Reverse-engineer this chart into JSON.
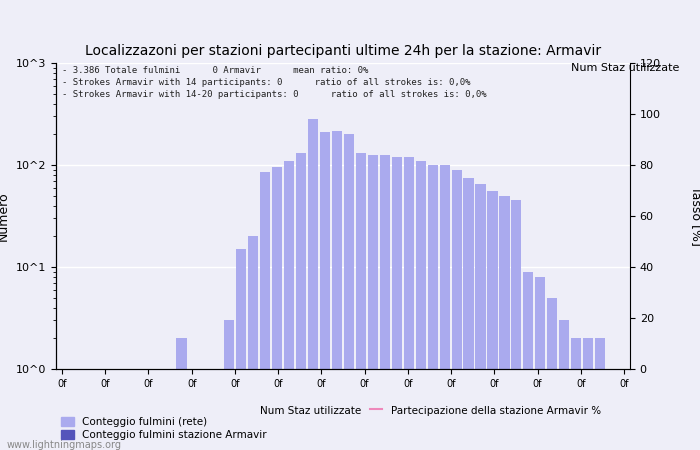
{
  "title": "Localizzazoni per stazioni partecipanti ultime 24h per la stazione: Armavir",
  "ylabel_left": "Numero",
  "ylabel_right": "Tasso [%]",
  "info_lines": [
    "- 3.386 Totale fulmini      0 Armavir      mean ratio: 0%",
    "- Strokes Armavir with 14 participants: 0      ratio of all strokes is: 0,0%",
    "- Strokes Armavir with 14-20 participants: 0      ratio of all strokes is: 0,0%"
  ],
  "bar_values": [
    1,
    1,
    1,
    1,
    1,
    1,
    1,
    1,
    1,
    1,
    2,
    1,
    1,
    1,
    3,
    15,
    20,
    85,
    95,
    110,
    130,
    280,
    210,
    215,
    200,
    130,
    125,
    125,
    120,
    120,
    110,
    100,
    100,
    90,
    75,
    65,
    55,
    50,
    45,
    9,
    8,
    5,
    3,
    2,
    2,
    2,
    1,
    1
  ],
  "bar_color": "#aaaaee",
  "dark_bar_color": "#6666cc",
  "dark_bar_values": [
    0,
    0,
    0,
    0,
    0,
    0,
    0,
    0,
    0,
    0,
    0,
    0,
    0,
    0,
    0,
    0,
    0,
    0,
    0,
    0,
    0,
    0,
    0,
    0,
    0,
    0,
    0,
    0,
    0,
    0,
    0,
    0,
    0,
    0,
    0,
    0,
    0,
    0,
    0,
    0,
    0,
    0,
    0,
    0,
    0,
    0,
    0,
    0
  ],
  "num_bars": 48,
  "ylim_log": [
    1,
    1000
  ],
  "ylim_right": [
    0,
    120
  ],
  "background_color": "#eeeef8",
  "grid_color": "#ffffff",
  "title_fontsize": 10,
  "legend_color_light": "#aaaaee",
  "legend_color_dark": "#5555bb",
  "legend_color_line": "#ee88bb",
  "right_label": "Num Staz utilizzate",
  "watermark": "www.lightningmaps.org",
  "n_xticks": 14
}
